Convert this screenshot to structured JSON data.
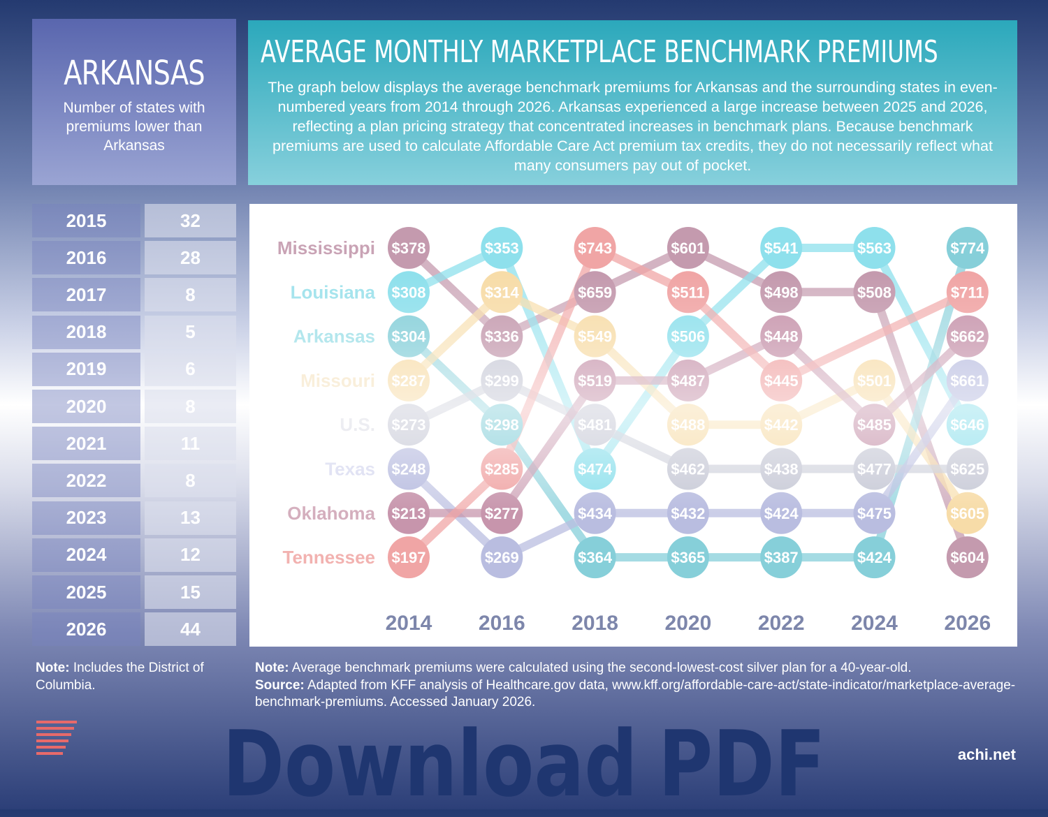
{
  "state_box": {
    "title": "ARKANSAS",
    "subtitle": "Number of states with premiums lower than Arkansas"
  },
  "header": {
    "title": "AVERAGE MONTHLY MARKETPLACE BENCHMARK PREMIUMS",
    "description": "The graph below displays the average benchmark premiums for Arkansas and the surrounding states in even-numbered years from 2014 through 2026. Arkansas experienced a large increase between 2025 and 2026, reflecting a plan pricing strategy that concentrated increases in benchmark plans. Because benchmark premiums are used to calculate Affordable Care Act premium tax credits, they do not necessarily reflect what many consumers pay out of pocket."
  },
  "rank_table": [
    {
      "year": "2015",
      "value": "32"
    },
    {
      "year": "2016",
      "value": "28"
    },
    {
      "year": "2017",
      "value": "8"
    },
    {
      "year": "2018",
      "value": "5"
    },
    {
      "year": "2019",
      "value": "6"
    },
    {
      "year": "2020",
      "value": "8"
    },
    {
      "year": "2021",
      "value": "11"
    },
    {
      "year": "2022",
      "value": "8"
    },
    {
      "year": "2023",
      "value": "13"
    },
    {
      "year": "2024",
      "value": "12"
    },
    {
      "year": "2025",
      "value": "15"
    },
    {
      "year": "2026",
      "value": "44"
    }
  ],
  "left_note": {
    "label": "Note:",
    "text": " Includes the District of Columbia."
  },
  "bottom_note": {
    "note_label": "Note:",
    "note": " Average benchmark premiums were calculated using the second-lowest-cost silver plan for a 40-year-old.",
    "source_label": "Source:",
    "source": " Adapted from KFF analysis of Healthcare.gov data, www.kff.org/affordable-care-act/state-indicator/marketplace-average-benchmark-premiums. Accessed January 2026."
  },
  "site": "achi.net",
  "overlay": {
    "line1": "Download",
    "line2": "PDF"
  },
  "chart_data": {
    "type": "bump",
    "title": "Average Monthly Marketplace Benchmark Premiums",
    "years": [
      "2014",
      "2016",
      "2018",
      "2020",
      "2022",
      "2024",
      "2026"
    ],
    "row_labels": [
      "Mississippi",
      "Louisiana",
      "Arkansas",
      "Missouri",
      "U.S.",
      "Texas",
      "Oklahoma",
      "Tennessee"
    ],
    "colors": {
      "MS": "#c49aae",
      "LA": "#8ee0ec",
      "AR": "#86cfd9",
      "MO": "#f7dca8",
      "US": "#c7c9d6",
      "TX": "#b9bde0",
      "OK": "#c795ac",
      "TN": "#f0a5a5"
    },
    "label_colors": [
      "#c9a3b5",
      "#9fe2ec",
      "#9fe0e8",
      "#f5e3c0",
      "#dcdde6",
      "#d8daf0",
      "#d4aebd",
      "#f2b2b0"
    ],
    "columns": [
      [
        [
          "MS",
          "$378"
        ],
        [
          "LA",
          "$308"
        ],
        [
          "AR",
          "$304"
        ],
        [
          "MO",
          "$287"
        ],
        [
          "US",
          "$273"
        ],
        [
          "TX",
          "$248"
        ],
        [
          "OK",
          "$213"
        ],
        [
          "TN",
          "$197"
        ]
      ],
      [
        [
          "LA",
          "$353"
        ],
        [
          "MO",
          "$314"
        ],
        [
          "MS",
          "$336"
        ],
        [
          "US",
          "$299"
        ],
        [
          "AR",
          "$298"
        ],
        [
          "TN",
          "$285"
        ],
        [
          "OK",
          "$277"
        ],
        [
          "TX",
          "$269"
        ]
      ],
      [
        [
          "TN",
          "$743"
        ],
        [
          "MS",
          "$659"
        ],
        [
          "MO",
          "$549"
        ],
        [
          "OK",
          "$519"
        ],
        [
          "US",
          "$481"
        ],
        [
          "LA",
          "$474"
        ],
        [
          "TX",
          "$434"
        ],
        [
          "AR",
          "$364"
        ]
      ],
      [
        [
          "MS",
          "$601"
        ],
        [
          "TN",
          "$511"
        ],
        [
          "LA",
          "$506"
        ],
        [
          "OK",
          "$487"
        ],
        [
          "MO",
          "$488"
        ],
        [
          "US",
          "$462"
        ],
        [
          "TX",
          "$432"
        ],
        [
          "AR",
          "$365"
        ]
      ],
      [
        [
          "LA",
          "$541"
        ],
        [
          "MS",
          "$498"
        ],
        [
          "OK",
          "$448"
        ],
        [
          "TN",
          "$445"
        ],
        [
          "MO",
          "$442"
        ],
        [
          "US",
          "$438"
        ],
        [
          "TX",
          "$424"
        ],
        [
          "AR",
          "$387"
        ]
      ],
      [
        [
          "LA",
          "$563"
        ],
        [
          "MS",
          "$508"
        ],
        null,
        [
          "MO",
          "$501"
        ],
        [
          "OK",
          "$485"
        ],
        [
          "US",
          "$477"
        ],
        [
          "TX",
          "$475"
        ],
        [
          "AR",
          "$424"
        ]
      ],
      [
        [
          "AR",
          "$774"
        ],
        [
          "TN",
          "$711"
        ],
        [
          "OK",
          "$662"
        ],
        [
          "TX",
          "$661"
        ],
        [
          "LA",
          "$646"
        ],
        [
          "US",
          "$625"
        ],
        [
          "MO",
          "$605"
        ],
        [
          "MS",
          "$604"
        ]
      ]
    ]
  }
}
